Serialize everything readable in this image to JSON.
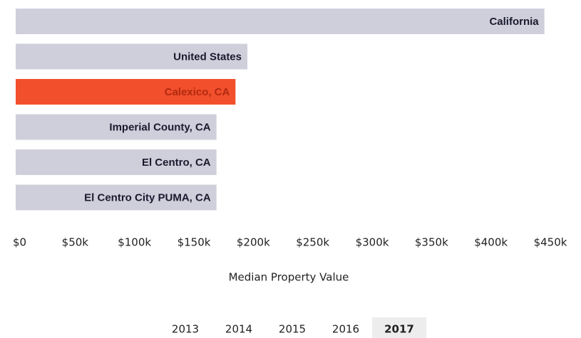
{
  "chart_data": {
    "type": "bar",
    "orientation": "horizontal",
    "categories": [
      "California",
      "United States",
      "Calexico, CA",
      "Imperial County, CA",
      "El Centro, CA",
      "El Centro City PUMA, CA"
    ],
    "values": [
      445000,
      195000,
      185000,
      169000,
      169000,
      169000
    ],
    "colors": [
      "#cfcfdc",
      "#cfcfdc",
      "#f24f2c",
      "#cfcfdc",
      "#cfcfdc",
      "#cfcfdc"
    ],
    "label_colors": [
      "#1a1a2e",
      "#1a1a2e",
      "#b02a10",
      "#1a1a2e",
      "#1a1a2e",
      "#1a1a2e"
    ],
    "xlim": [
      0,
      450000
    ],
    "xticks": [
      {
        "value": 0,
        "label": "$0"
      },
      {
        "value": 50000,
        "label": "$50k"
      },
      {
        "value": 100000,
        "label": "$100k"
      },
      {
        "value": 150000,
        "label": "$150k"
      },
      {
        "value": 200000,
        "label": "$200k"
      },
      {
        "value": 250000,
        "label": "$250k"
      },
      {
        "value": 300000,
        "label": "$300k"
      },
      {
        "value": 350000,
        "label": "$350k"
      },
      {
        "value": 400000,
        "label": "$400k"
      },
      {
        "value": 450000,
        "label": "$450k"
      }
    ],
    "grid": false,
    "x_label": "Median Property Value"
  },
  "year_selector": {
    "years": [
      "2013",
      "2014",
      "2015",
      "2016",
      "2017"
    ],
    "selected": "2017"
  }
}
